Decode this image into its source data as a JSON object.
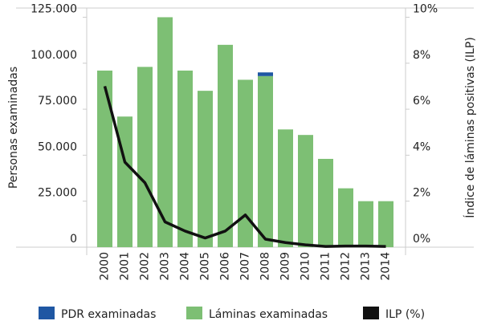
{
  "chart_data": {
    "type": "bar",
    "stacked": true,
    "categories": [
      "2000",
      "2001",
      "2002",
      "2003",
      "2004",
      "2005",
      "2006",
      "2007",
      "2008",
      "2009",
      "2010",
      "2011",
      "2012",
      "2013",
      "2014"
    ],
    "series": [
      {
        "name": "PDR examinadas",
        "color": "#1f57a3",
        "values": [
          null,
          null,
          null,
          null,
          null,
          null,
          null,
          null,
          2000,
          null,
          null,
          null,
          null,
          null,
          null
        ]
      },
      {
        "name": "Láminas examinadas",
        "color": "#7dbf74",
        "values": [
          96000,
          71000,
          98000,
          125000,
          96000,
          85000,
          110000,
          91000,
          93000,
          64000,
          61000,
          48000,
          32000,
          25000,
          25000
        ]
      },
      {
        "name": "ILP (%)",
        "color": "#111111",
        "type": "line",
        "axis": "y2",
        "values": [
          7.0,
          3.7,
          2.8,
          1.1,
          0.7,
          0.4,
          0.7,
          1.4,
          0.35,
          0.2,
          0.1,
          0.03,
          0.05,
          0.05,
          0.03
        ]
      }
    ],
    "ylabel": "Personas examinadas",
    "y2label": "Índice de láminas positivas (ILP)",
    "ylim": [
      0,
      130000
    ],
    "yticks": [
      0,
      {
        "value": 25000,
        "label": "25.000"
      },
      {
        "value": 50000,
        "label": "50.000"
      },
      {
        "value": 75000,
        "label": "75.000"
      },
      {
        "value": 100000,
        "label": "100.000"
      },
      {
        "value": 125000,
        "label": "125.000"
      }
    ],
    "y2lim": [
      0,
      10.4
    ],
    "y2ticks": [
      {
        "value": 0,
        "label": "0%"
      },
      {
        "value": 2,
        "label": "2%"
      },
      {
        "value": 4,
        "label": "4%"
      },
      {
        "value": 6,
        "label": "6%"
      },
      {
        "value": 8,
        "label": "8%"
      },
      {
        "value": 10,
        "label": "10%"
      }
    ],
    "legend": "bottom"
  }
}
